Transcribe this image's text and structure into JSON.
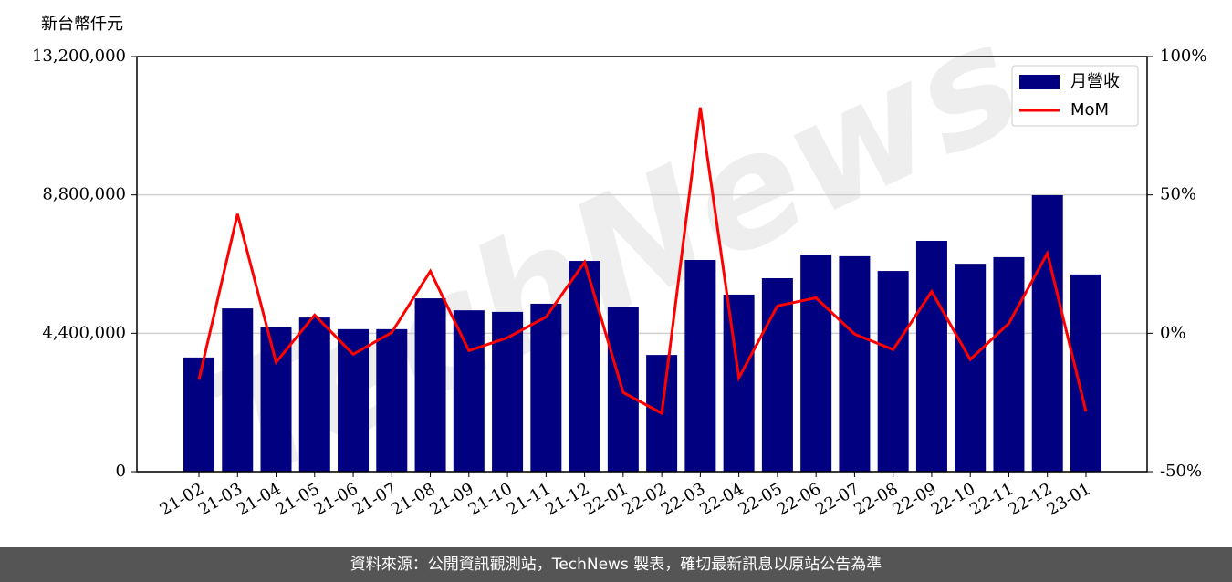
{
  "chart_data": {
    "type": "bar-line",
    "y_label": "新台幣仟元",
    "watermark": "TechNews",
    "categories": [
      "21-02",
      "21-03",
      "21-04",
      "21-05",
      "21-06",
      "21-07",
      "21-08",
      "21-09",
      "21-10",
      "21-11",
      "21-12",
      "22-01",
      "22-02",
      "22-03",
      "22-04",
      "22-05",
      "22-06",
      "22-07",
      "22-08",
      "22-09",
      "22-10",
      "22-11",
      "22-12",
      "23-01"
    ],
    "series": [
      {
        "name": "月營收",
        "color": "#000080",
        "type": "bar",
        "values": [
          3630000,
          5190000,
          4610000,
          4900000,
          4530000,
          4530000,
          5510000,
          5130000,
          5080000,
          5340000,
          6700000,
          5250000,
          3710000,
          6730000,
          5630000,
          6150000,
          6900000,
          6850000,
          6380000,
          7340000,
          6610000,
          6820000,
          8790000,
          6270000
        ]
      },
      {
        "name": "MoM",
        "color": "#ff0000",
        "type": "line",
        "axis": "y2",
        "values": [
          -16.8,
          43.1,
          -10.5,
          6.6,
          -7.6,
          0.3,
          22.4,
          -6.3,
          -1.6,
          5.9,
          25.7,
          -21.4,
          -28.9,
          81.6,
          -16.1,
          9.9,
          12.8,
          -0.3,
          -5.9,
          15.1,
          -9.5,
          3.6,
          28.9,
          -28.3
        ]
      }
    ],
    "ylim": [
      0,
      13200000
    ],
    "yticks": [
      0,
      {
        "value": 4400000,
        "label": "4,400,000"
      },
      {
        "value": 8800000,
        "label": "8,800,000"
      },
      {
        "value": 13200000,
        "label": "13,200,000"
      }
    ],
    "y2lim": [
      -50,
      100
    ],
    "y2ticks": [
      {
        "value": -50,
        "label": "-50%"
      },
      {
        "value": 0,
        "label": "0%"
      },
      {
        "value": 50,
        "label": "50%"
      },
      {
        "value": 100,
        "label": "100%"
      }
    ],
    "grid": true,
    "legend": "upper right"
  },
  "footer": "資料來源：公開資訊觀測站，TechNews 製表，確切最新訊息以原站公告為準"
}
